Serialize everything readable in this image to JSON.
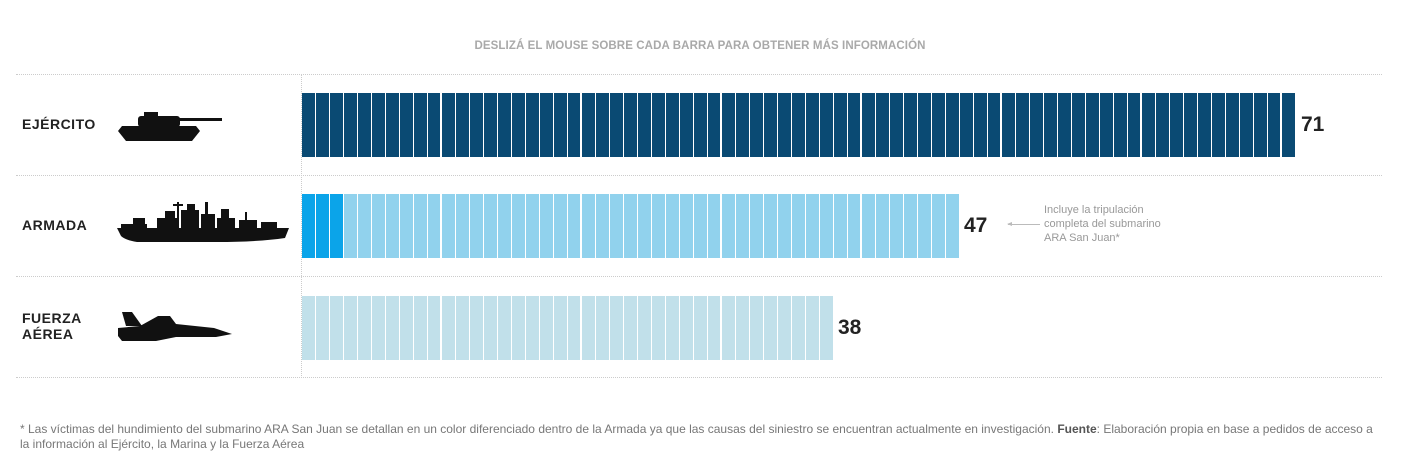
{
  "instruction": "DESLIZÁ EL MOUSE SOBRE CADA BARRA PARA OBTENER MÁS INFORMACIÓN",
  "chart_data": {
    "type": "bar",
    "orientation": "horizontal",
    "categories": [
      "EJÉRCITO",
      "ARMADA",
      "FUERZA AÉREA"
    ],
    "values": [
      71,
      47,
      38
    ],
    "highlight": {
      "category": "ARMADA",
      "count": 3,
      "description": "Víctimas del hundimiento del submarino ARA San Juan"
    },
    "colors": {
      "EJÉRCITO": "#0a4a73",
      "ARMADA": "#91d2ed",
      "ARMADA_highlight": "#0ba4e9",
      "FUERZA AÉREA": "#c1e0ea"
    },
    "icons": [
      "tank-icon",
      "warship-icon",
      "fighter-jet-icon"
    ],
    "annotation": "Incluye la tripulación completa del submarino ARA San Juan*",
    "grid": false,
    "legend": "none"
  },
  "labels": {
    "ejercito": "EJÉRCITO",
    "armada": "ARMADA",
    "fuerza_line1": "FUERZA",
    "fuerza_line2": "AÉREA"
  },
  "values_text": {
    "ejercito": "71",
    "armada": "47",
    "fuerza": "38"
  },
  "note": "Incluye la tripulación completa del submarino ARA San Juan*",
  "footnote": {
    "text": "* Las víctimas del hundimiento del submarino ARA San Juan se detallan en un color diferenciado dentro de la Armada ya que las causas del siniestro se encuentran actualmente en investigación.",
    "source_label": "Fuente",
    "source_text": ": Elaboración propia en base a pedidos de acceso a la información al Ejército, la Marina y la Fuerza Aérea"
  }
}
